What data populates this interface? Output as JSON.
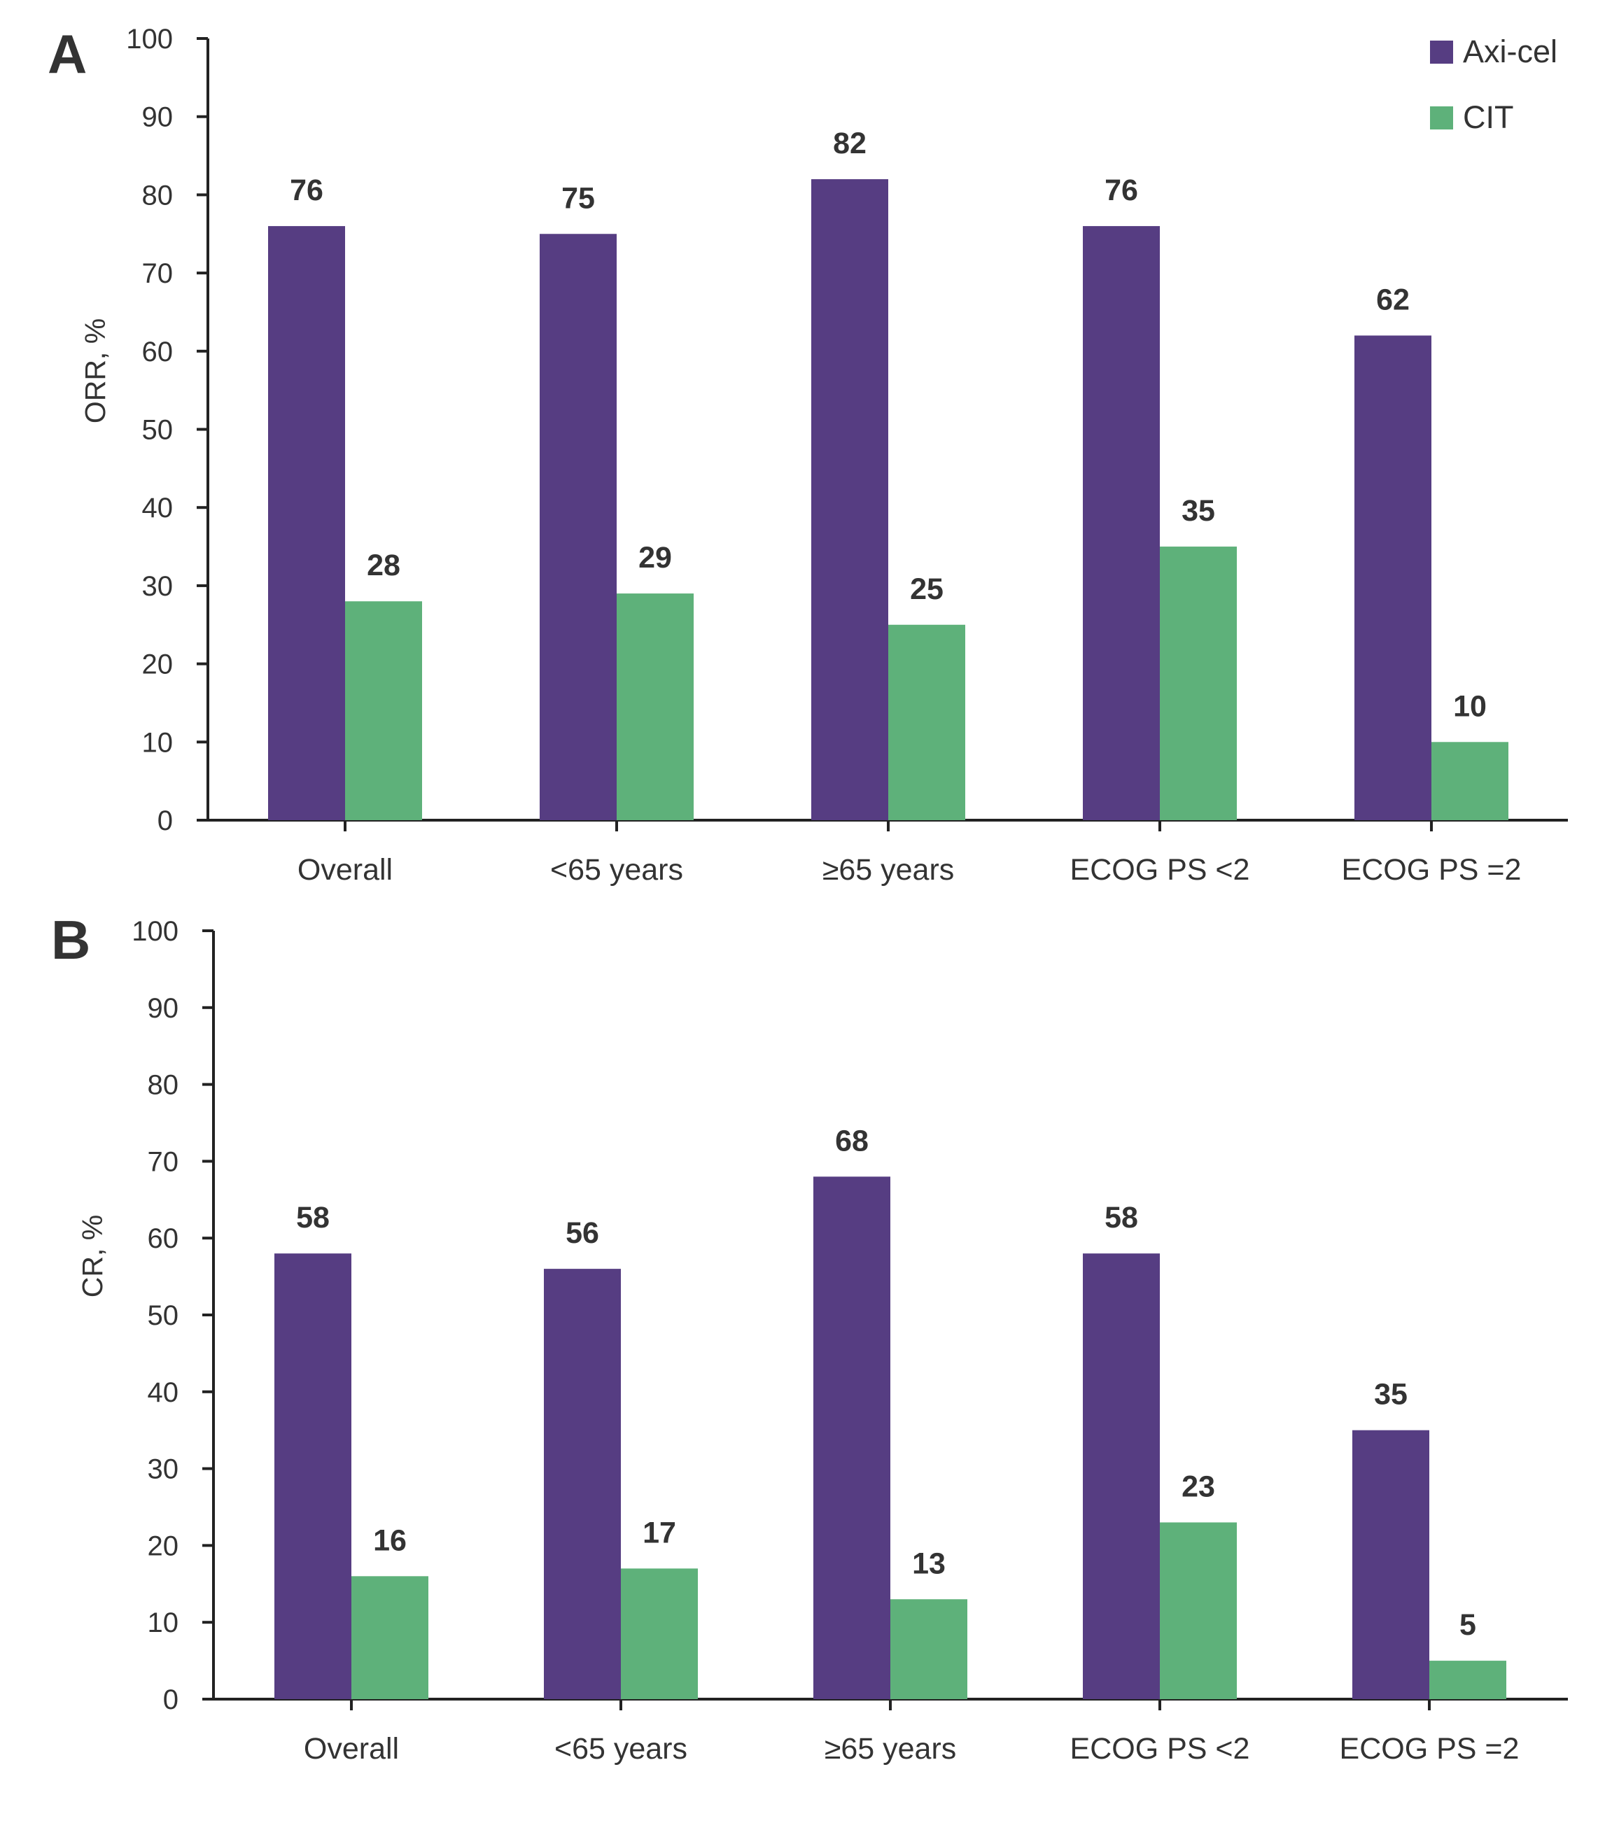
{
  "colors": {
    "axi_cel": "#563d82",
    "cit": "#5eb17a",
    "axis": "#222222",
    "text": "#333333"
  },
  "chart_data": [
    {
      "type": "bar",
      "panel": "A",
      "ylabel": "ORR, %",
      "xlabel": "",
      "ylim": [
        0,
        100
      ],
      "yticks": [
        0,
        10,
        20,
        30,
        40,
        50,
        60,
        70,
        80,
        90,
        100
      ],
      "categories": [
        "Overall",
        "<65 years",
        "≥65 years",
        "ECOG PS <2",
        "ECOG PS =2"
      ],
      "series": [
        {
          "name": "Axi-cel",
          "color": "#563d82",
          "values": [
            76,
            75,
            82,
            76,
            62
          ]
        },
        {
          "name": "CIT",
          "color": "#5eb17a",
          "values": [
            28,
            29,
            25,
            35,
            10
          ]
        }
      ],
      "legend": "top-right",
      "grid": false
    },
    {
      "type": "bar",
      "panel": "B",
      "ylabel": "CR, %",
      "xlabel": "",
      "ylim": [
        0,
        100
      ],
      "yticks": [
        0,
        10,
        20,
        30,
        40,
        50,
        60,
        70,
        80,
        90,
        100
      ],
      "categories": [
        "Overall",
        "<65 years",
        "≥65 years",
        "ECOG PS <2",
        "ECOG PS =2"
      ],
      "series": [
        {
          "name": "Axi-cel",
          "color": "#563d82",
          "values": [
            58,
            56,
            68,
            58,
            35
          ]
        },
        {
          "name": "CIT",
          "color": "#5eb17a",
          "values": [
            16,
            17,
            13,
            23,
            5
          ]
        }
      ],
      "legend": "none",
      "grid": false
    }
  ]
}
